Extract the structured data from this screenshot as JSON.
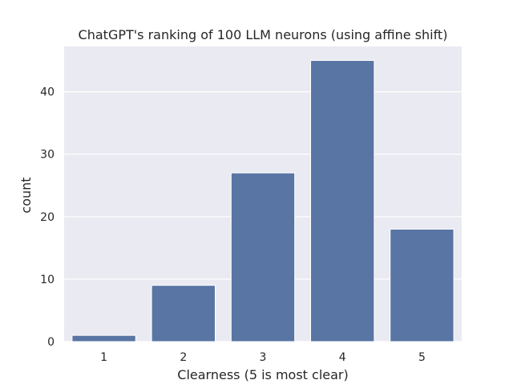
{
  "chart_data": {
    "type": "bar",
    "title": "ChatGPT's ranking of 100 LLM neurons (using affine shift)",
    "xlabel": "Clearness (5 is most clear)",
    "ylabel": "count",
    "categories": [
      "1",
      "2",
      "3",
      "4",
      "5"
    ],
    "values": [
      1,
      9,
      27,
      45,
      18
    ],
    "ylim": [
      0,
      47.25
    ],
    "yticks": [
      0,
      10,
      20,
      30,
      40
    ],
    "grid": true,
    "bar_color": "#5975a4",
    "background_color": "#eaeaf2"
  }
}
